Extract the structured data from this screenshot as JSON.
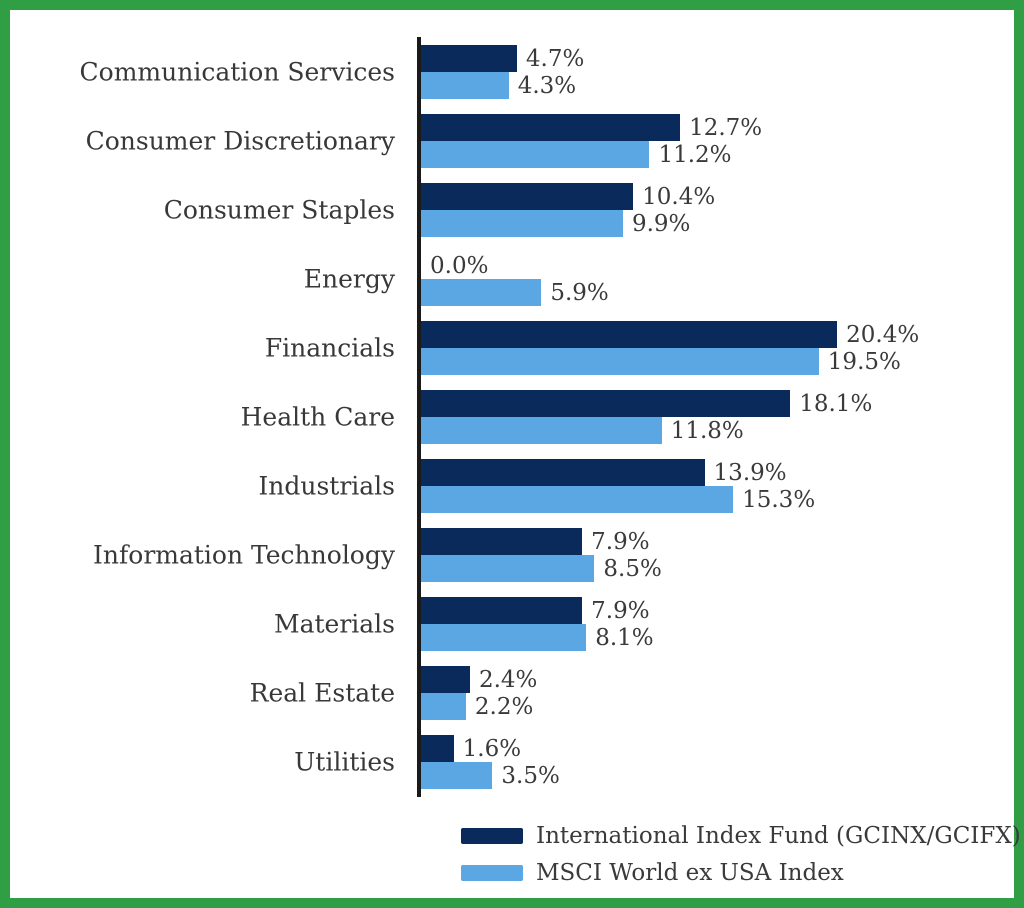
{
  "frame": {
    "border_color": "#2F9E45",
    "background": "#ffffff"
  },
  "chart_data": {
    "type": "bar",
    "orientation": "horizontal",
    "grid": false,
    "legend_position": "bottom",
    "xlim": [
      0,
      24
    ],
    "axis_color": "#1A1A1A",
    "categories": [
      "Communication Services",
      "Consumer Discretionary",
      "Consumer Staples",
      "Energy",
      "Financials",
      "Health Care",
      "Industrials",
      "Information Technology",
      "Materials",
      "Real Estate",
      "Utilities"
    ],
    "series": [
      {
        "name": "International Index Fund (GCINX/GCIFX)",
        "color": "#0A2A5C",
        "values": [
          4.7,
          12.7,
          10.4,
          0.0,
          20.4,
          18.1,
          13.9,
          7.9,
          7.9,
          2.4,
          1.6
        ],
        "labels": [
          "4.7%",
          "12.7%",
          "10.4%",
          "0.0%",
          "20.4%",
          "18.1%",
          "13.9%",
          "7.9%",
          "7.9%",
          "2.4%",
          "1.6%"
        ]
      },
      {
        "name": "MSCI World ex USA Index",
        "color": "#5BA7E3",
        "values": [
          4.3,
          11.2,
          9.9,
          5.9,
          19.5,
          11.8,
          15.3,
          8.5,
          8.1,
          2.2,
          3.5
        ],
        "labels": [
          "4.3%",
          "11.2%",
          "9.9%",
          "5.9%",
          "19.5%",
          "11.8%",
          "15.3%",
          "8.5%",
          "8.1%",
          "2.2%",
          "3.5%"
        ]
      }
    ]
  }
}
